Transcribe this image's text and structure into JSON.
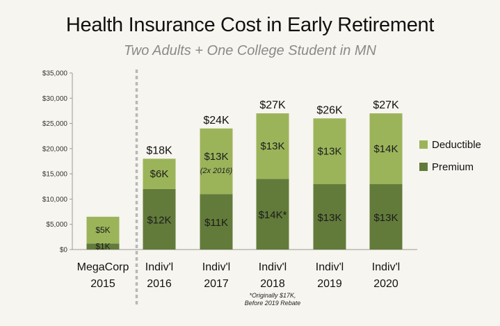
{
  "chart_data": {
    "type": "bar",
    "stacked": true,
    "title": "Health Insurance Cost in Early Retirement",
    "subtitle": "Two Adults + One College Student in MN",
    "categories": [
      [
        "MegaCorp",
        "2015"
      ],
      [
        "Indiv'l",
        "2016"
      ],
      [
        "Indiv'l",
        "2017"
      ],
      [
        "Indiv'l",
        "2018"
      ],
      [
        "Indiv'l",
        "2019"
      ],
      [
        "Indiv'l",
        "2020"
      ]
    ],
    "series": [
      {
        "name": "Premium",
        "color": "#627b3a",
        "values": [
          1200,
          12000,
          11000,
          14000,
          13000,
          13000
        ],
        "labels": [
          "$1K",
          "$12K",
          "$11K",
          "$14K*",
          "$13K",
          "$13K"
        ]
      },
      {
        "name": "Deductible",
        "color": "#9bb45a",
        "values": [
          5300,
          6000,
          13000,
          13000,
          13000,
          14000
        ],
        "labels": [
          "$5K",
          "$6K",
          "$13K",
          "$13K",
          "$13K",
          "$14K"
        ]
      }
    ],
    "totals": [
      "",
      "$18K",
      "$24K",
      "$27K",
      "$26K",
      "$27K"
    ],
    "annotations": [
      {
        "category_index": 2,
        "text": "(2x 2016)"
      }
    ],
    "footnote": [
      "*Originally $17K,",
      "Before 2019 Rebate"
    ],
    "yticks": [
      "$0",
      "$5,000",
      "$10,000",
      "$15,000",
      "$20,000",
      "$25,000",
      "$30,000",
      "$35,000"
    ],
    "ylim": [
      0,
      35000
    ],
    "legend": [
      "Deductible",
      "Premium"
    ],
    "legend_position": "right",
    "separator_after_index": 0
  }
}
